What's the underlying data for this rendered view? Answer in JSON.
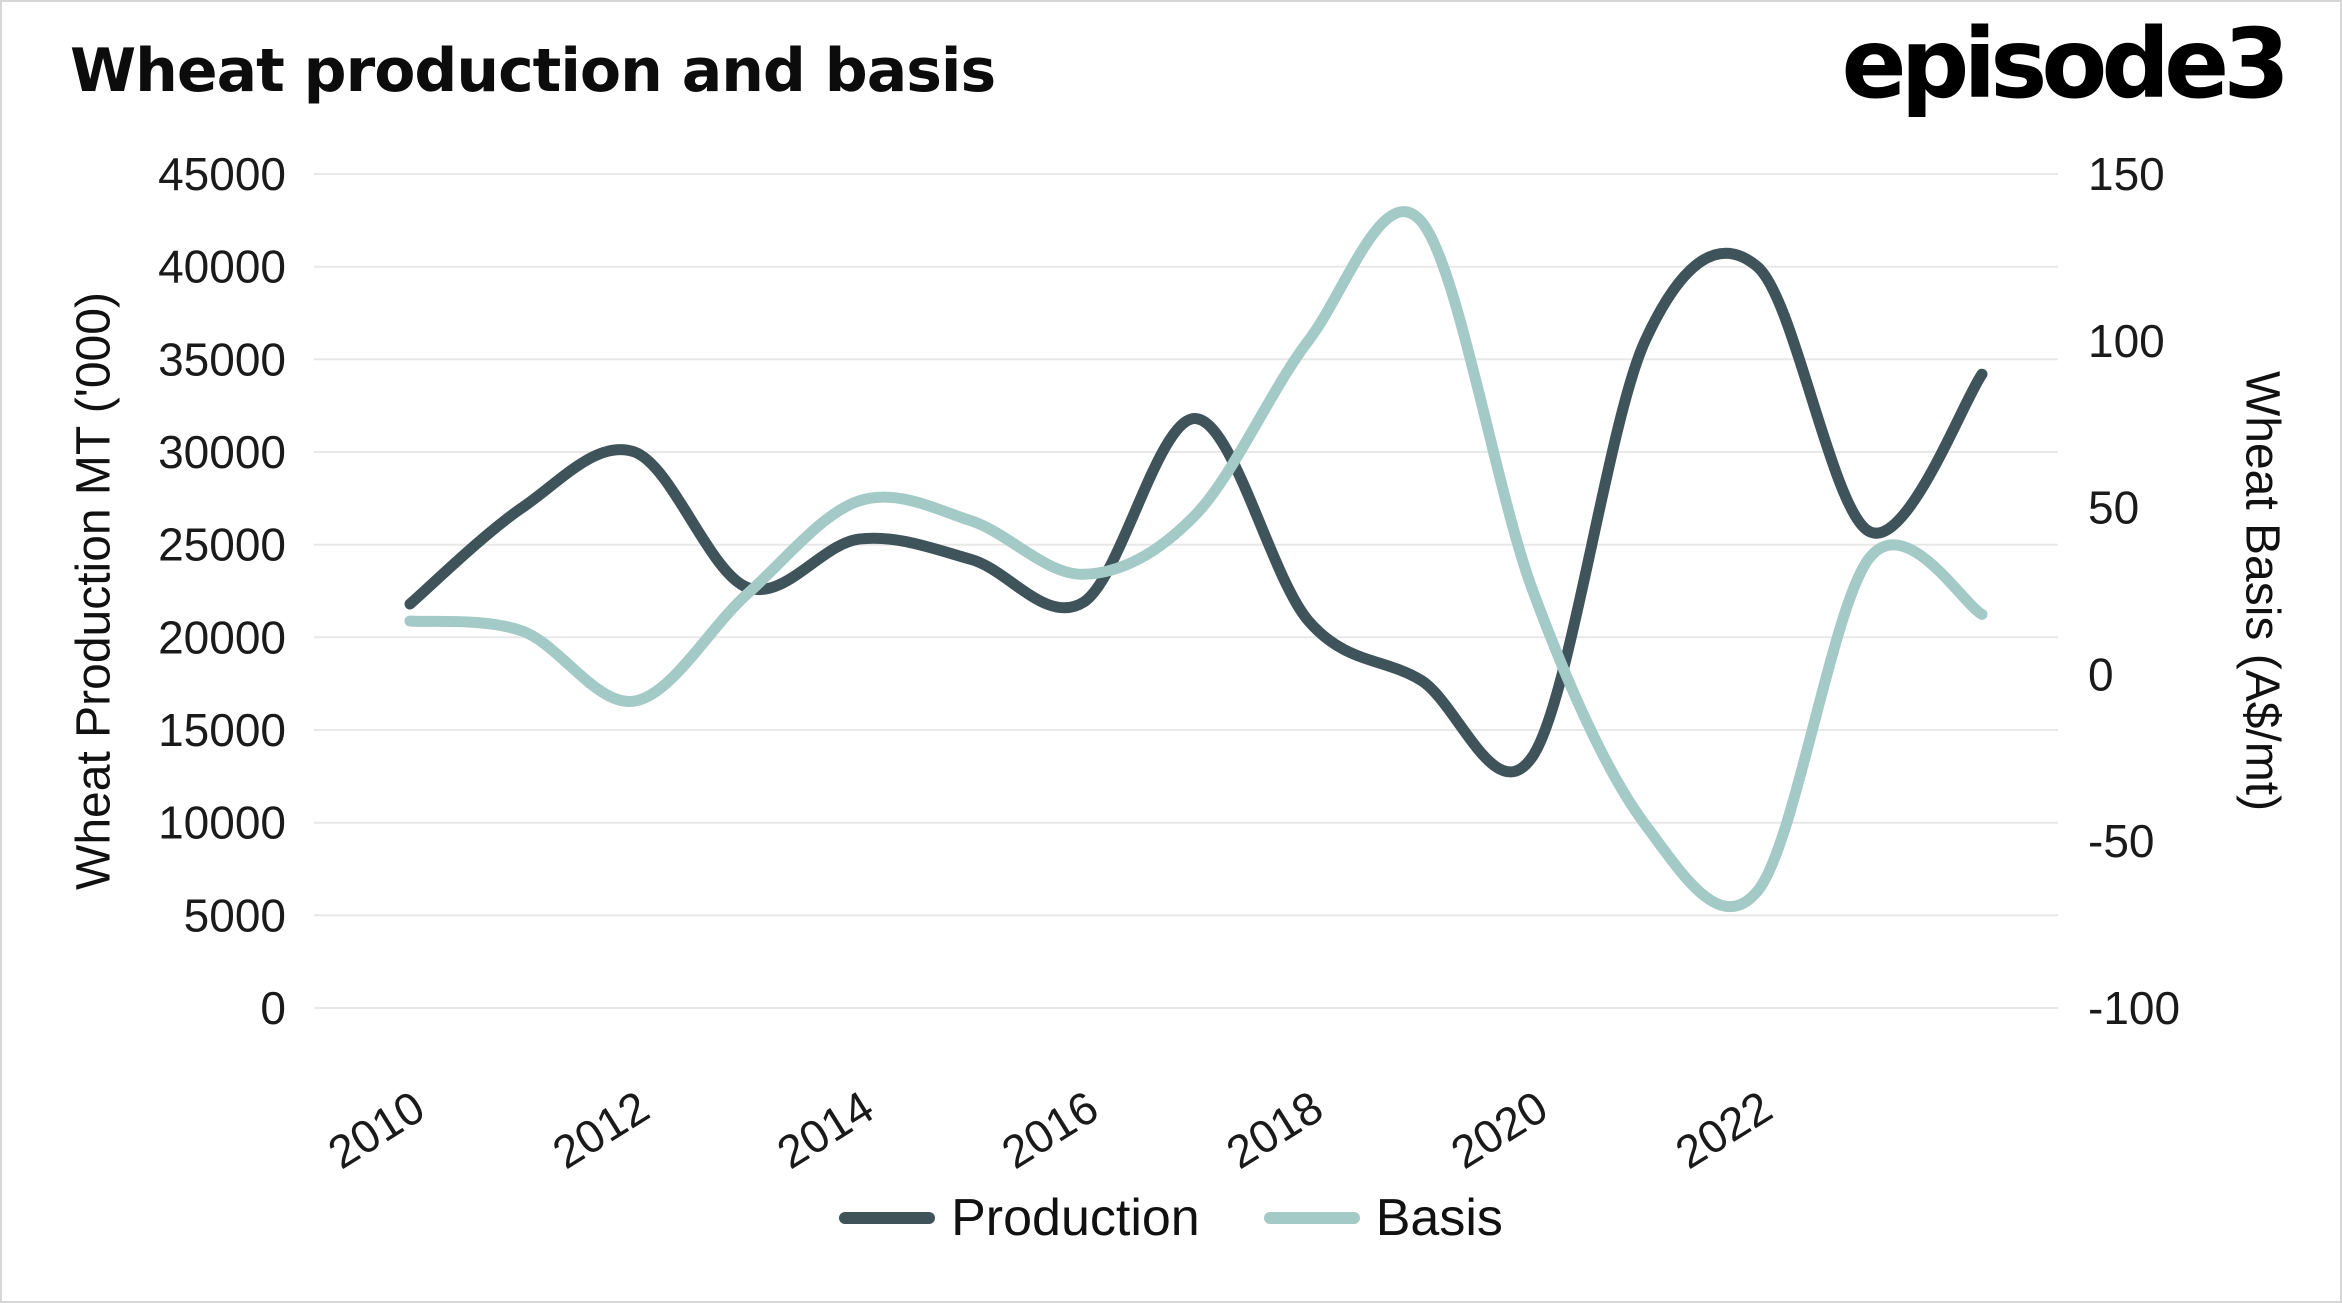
{
  "branding": {
    "logo_text": "episode3"
  },
  "colors": {
    "background": "#ffffff",
    "border": "#d6d6d6",
    "grid": "#e8e8e8",
    "text": "#1a1a1a",
    "production_line": "#3f545a",
    "basis_line": "#a3cac6"
  },
  "chart_data": {
    "type": "line",
    "title": "Wheat production and basis",
    "smoothing": true,
    "grid": true,
    "legend_position": "bottom",
    "x": [
      2010,
      2011,
      2012,
      2013,
      2014,
      2015,
      2016,
      2017,
      2018,
      2019,
      2020,
      2021,
      2022,
      2023,
      2024
    ],
    "x_tick_labels": [
      2010,
      2012,
      2014,
      2016,
      2018,
      2020,
      2022
    ],
    "left_axis": {
      "label": "Wheat Production MT ('000)",
      "min": 0,
      "max": 45000,
      "ticks": [
        0,
        5000,
        10000,
        15000,
        20000,
        25000,
        30000,
        35000,
        40000,
        45000
      ]
    },
    "right_axis": {
      "label": "Wheat Basis (A$/mt)",
      "min": -100,
      "max": 150,
      "ticks": [
        -100,
        -50,
        0,
        50,
        100,
        150
      ]
    },
    "series": [
      {
        "name": "Production",
        "yaxis": "left",
        "color": "#3f545a",
        "values": [
          21800,
          27000,
          30000,
          22700,
          25300,
          24200,
          21900,
          31800,
          20900,
          17700,
          13600,
          36000,
          40000,
          25700,
          34200
        ]
      },
      {
        "name": "Basis",
        "yaxis": "right",
        "color": "#a3cac6",
        "values": [
          16,
          13,
          -8,
          24,
          52,
          46,
          30,
          48,
          100,
          136,
          25,
          -45,
          -65,
          35,
          18
        ]
      }
    ]
  }
}
